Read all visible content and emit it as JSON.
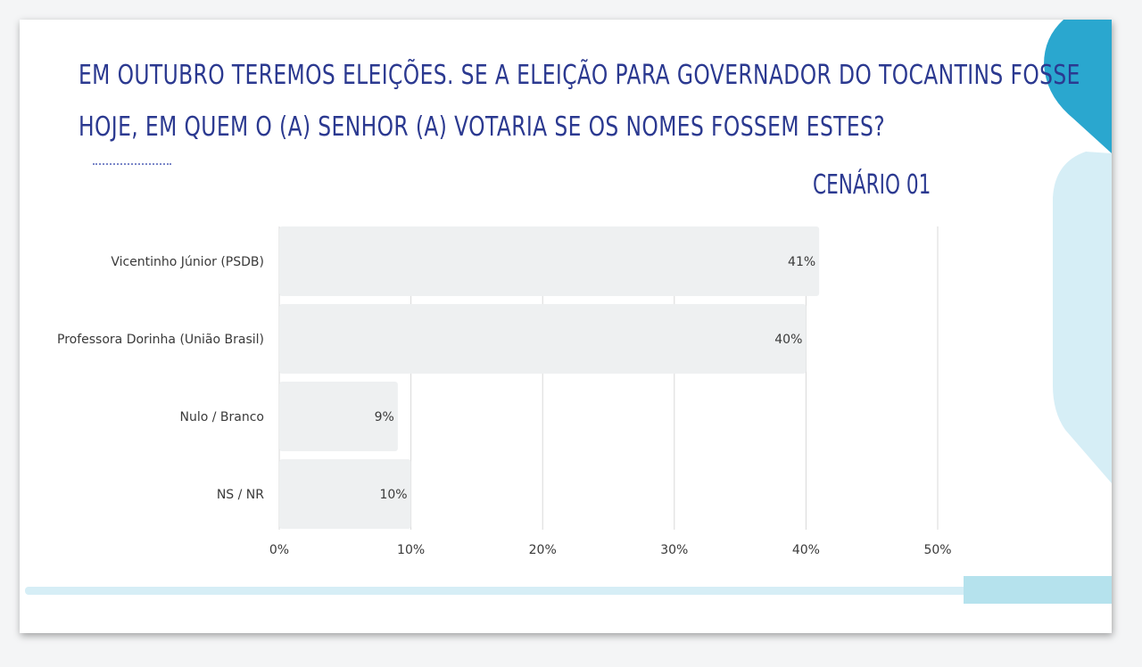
{
  "title_lines": [
    "EM OUTUBRO TEREMOS ELEIÇÕES. SE A ELEIÇÃO PARA GOVERNADOR DO TOCANTINS FOSSE",
    "HOJE, EM QUEM O (A) SENHOR (A) VOTARIA SE OS NOMES FOSSEM ESTES?"
  ],
  "scenario_label": "CENÁRIO 01",
  "colors": {
    "title": "#2b3990",
    "bar": "#eef0f1",
    "accent_teal": "#2aa7cf",
    "accent_light": "#d6eef6"
  },
  "chart_data": {
    "type": "bar",
    "orientation": "horizontal",
    "categories": [
      "Vicentinho Júnior (PSDB)",
      "Professora Dorinha (União Brasil)",
      "Nulo / Branco",
      "NS / NR"
    ],
    "values": [
      41,
      40,
      9,
      10
    ],
    "value_labels": [
      "41%",
      "40%",
      "9%",
      "10%"
    ],
    "xlim": [
      0,
      50
    ],
    "x_ticks": [
      0,
      10,
      20,
      30,
      40,
      50
    ],
    "x_tick_labels": [
      "0%",
      "10%",
      "20%",
      "30%",
      "40%",
      "50%"
    ],
    "grid": true
  }
}
